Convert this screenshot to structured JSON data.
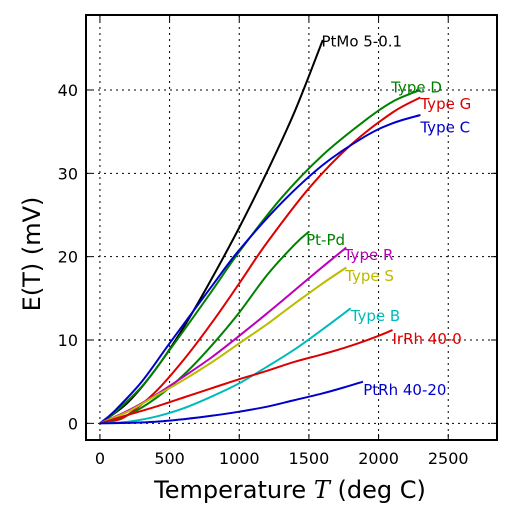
{
  "chart_data": {
    "type": "line",
    "xlabel": "Temperature",
    "xlabel_symbol": "T",
    "xlabel_unit": "(deg C)",
    "ylabel": "E(T) (mV)",
    "xlim": [
      -100,
      2850
    ],
    "ylim": [
      -2,
      49
    ],
    "x_ticks": [
      0,
      500,
      1000,
      1500,
      2000,
      2500
    ],
    "y_ticks": [
      0,
      10,
      20,
      30,
      40
    ],
    "x_tick_labels": [
      "0",
      "500",
      "1000",
      "1500",
      "2000",
      "2500"
    ],
    "y_tick_labels": [
      "0",
      "10",
      "20",
      "30",
      "40"
    ],
    "grid": true,
    "series": [
      {
        "name": "PtMo 5-0.1",
        "color": "#000000",
        "label_anchor": [
          1590,
          45.8
        ],
        "x": [
          0,
          200,
          400,
          600,
          800,
          1000,
          1200,
          1400,
          1600
        ],
        "y": [
          0,
          2.5,
          6.5,
          11.5,
          17.3,
          23.5,
          30.2,
          37.5,
          46
        ]
      },
      {
        "name": "Type D",
        "color": "#008000",
        "label_anchor": [
          2090,
          40.3
        ],
        "x": [
          0,
          100,
          300,
          500,
          800,
          1000,
          1300,
          1600,
          1900,
          2100,
          2300
        ],
        "y": [
          0,
          1.2,
          4.4,
          8.8,
          15.8,
          20.6,
          27.0,
          32.2,
          36.3,
          38.6,
          40.0
        ]
      },
      {
        "name": "Type G",
        "color": "#dd0000",
        "label_anchor": [
          2300,
          38.3
        ],
        "x": [
          0,
          100,
          200,
          400,
          600,
          800,
          1000,
          1200,
          1500,
          1800,
          2100,
          2300
        ],
        "y": [
          0,
          0.3,
          1.0,
          3.8,
          7.6,
          12.0,
          16.8,
          21.7,
          28.2,
          33.4,
          37.3,
          39.1
        ]
      },
      {
        "name": "Type C",
        "color": "#0000cc",
        "label_anchor": [
          2300,
          35.5
        ],
        "x": [
          0,
          100,
          300,
          500,
          800,
          1000,
          1300,
          1600,
          1900,
          2100,
          2300
        ],
        "y": [
          0,
          1.4,
          5.0,
          9.6,
          16.4,
          20.8,
          26.4,
          31.0,
          34.4,
          36.0,
          37.0
        ]
      },
      {
        "name": "Pt-Pd",
        "color": "#008000",
        "label_anchor": [
          1480,
          22.0
        ],
        "x": [
          0,
          200,
          400,
          600,
          800,
          1000,
          1200,
          1400,
          1500
        ],
        "y": [
          0,
          1.0,
          3.0,
          5.8,
          9.3,
          13.3,
          17.8,
          21.5,
          23.0
        ]
      },
      {
        "name": "Type R",
        "color": "#bb00bb",
        "label_anchor": [
          1750,
          20.2
        ],
        "x": [
          0,
          200,
          400,
          600,
          800,
          1000,
          1200,
          1400,
          1600,
          1768
        ],
        "y": [
          0,
          1.5,
          3.4,
          5.6,
          7.9,
          10.5,
          13.2,
          16.0,
          18.8,
          21.1
        ]
      },
      {
        "name": "Type S",
        "color": "#bbbb00",
        "label_anchor": [
          1760,
          17.7
        ],
        "x": [
          0,
          200,
          400,
          600,
          800,
          1000,
          1200,
          1400,
          1600,
          1768
        ],
        "y": [
          0,
          1.4,
          3.3,
          5.2,
          7.3,
          9.6,
          11.9,
          14.4,
          16.8,
          18.7
        ]
      },
      {
        "name": "Type B",
        "color": "#00bbbb",
        "label_anchor": [
          1800,
          12.9
        ],
        "x": [
          0,
          200,
          400,
          600,
          800,
          1000,
          1200,
          1400,
          1600,
          1800
        ],
        "y": [
          0,
          0.2,
          0.8,
          1.8,
          3.2,
          4.8,
          6.8,
          8.9,
          11.3,
          13.8
        ]
      },
      {
        "name": "IrRh 40-0",
        "color": "#dd0000",
        "label_anchor": [
          2100,
          10.1
        ],
        "x": [
          0,
          200,
          400,
          600,
          800,
          1000,
          1200,
          1400,
          1600,
          1800,
          2000,
          2100
        ],
        "y": [
          0,
          1.0,
          2.0,
          3.1,
          4.2,
          5.3,
          6.3,
          7.4,
          8.3,
          9.3,
          10.5,
          11.2
        ]
      },
      {
        "name": "PtRh 40-20",
        "color": "#0000cc",
        "label_anchor": [
          1890,
          4.0
        ],
        "x": [
          0,
          200,
          400,
          600,
          800,
          1000,
          1200,
          1400,
          1600,
          1750,
          1888
        ],
        "y": [
          0,
          0.05,
          0.2,
          0.5,
          0.9,
          1.4,
          2.0,
          2.8,
          3.6,
          4.3,
          5.0
        ]
      }
    ]
  }
}
